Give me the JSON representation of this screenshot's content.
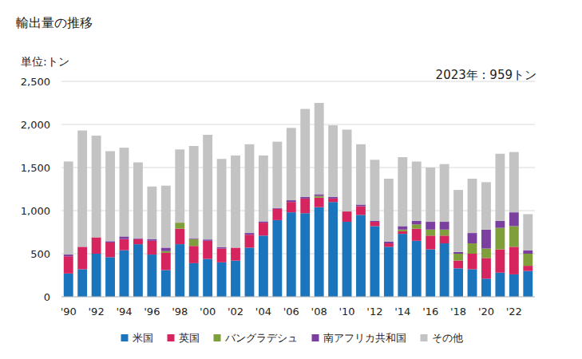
{
  "chart_data": {
    "type": "bar",
    "stacked": true,
    "grid": true,
    "legend": "bottom",
    "title": "輸出量の推移",
    "y_label": "単位:トン",
    "annotation": "2023年 : 959トン",
    "categories": [
      "'90",
      null,
      "'92",
      null,
      "'94",
      null,
      "'96",
      null,
      "'98",
      null,
      "'00",
      null,
      "'02",
      null,
      "'04",
      null,
      "'06",
      null,
      "'08",
      null,
      "'10",
      null,
      "'12",
      null,
      "'14",
      null,
      "'16",
      null,
      "'18",
      null,
      "'20",
      null,
      "'22",
      null
    ],
    "ylim": [
      0,
      2500
    ],
    "yticks": [
      0,
      500,
      {
        "value": 1000,
        "label": "1,000"
      },
      {
        "value": 1500,
        "label": "1,500"
      },
      {
        "value": 2000,
        "label": "2,000"
      },
      {
        "value": 2500,
        "label": "2,500"
      }
    ],
    "series": [
      {
        "name": "米国",
        "color": "#1a75bc",
        "values": [
          270,
          320,
          500,
          460,
          540,
          610,
          490,
          310,
          610,
          390,
          440,
          400,
          420,
          570,
          710,
          890,
          980,
          970,
          1040,
          1100,
          870,
          950,
          820,
          580,
          730,
          650,
          550,
          620,
          330,
          320,
          210,
          280,
          260,
          300
        ]
      },
      {
        "name": "英国",
        "color": "#d6245e",
        "values": [
          200,
          260,
          190,
          170,
          130,
          60,
          160,
          200,
          180,
          200,
          210,
          160,
          150,
          150,
          150,
          130,
          120,
          170,
          110,
          40,
          120,
          100,
          50,
          40,
          30,
          140,
          160,
          90,
          90,
          180,
          240,
          270,
          320,
          60
        ]
      },
      {
        "name": "バングラデシュ",
        "color": "#7f9f3a",
        "values": [
          0,
          0,
          0,
          0,
          0,
          0,
          0,
          20,
          70,
          80,
          0,
          0,
          0,
          0,
          0,
          0,
          0,
          0,
          20,
          0,
          0,
          0,
          0,
          0,
          20,
          50,
          70,
          70,
          80,
          120,
          110,
          250,
          240,
          140
        ]
      },
      {
        "name": "南アフリカ共和国",
        "color": "#7b3fa0",
        "values": [
          20,
          0,
          0,
          15,
          30,
          10,
          20,
          40,
          0,
          10,
          15,
          15,
          0,
          20,
          15,
          10,
          20,
          20,
          20,
          20,
          0,
          20,
          10,
          20,
          40,
          40,
          90,
          90,
          20,
          120,
          220,
          80,
          160,
          40
        ]
      },
      {
        "name": "その他",
        "color": "#c3c3c3",
        "values": [
          1080,
          1350,
          1180,
          1045,
          1030,
          880,
          610,
          720,
          850,
          1070,
          1215,
          1025,
          1070,
          1030,
          765,
          770,
          840,
          1020,
          1060,
          830,
          950,
          700,
          710,
          730,
          800,
          690,
          630,
          670,
          720,
          630,
          550,
          780,
          700,
          419
        ]
      }
    ]
  }
}
